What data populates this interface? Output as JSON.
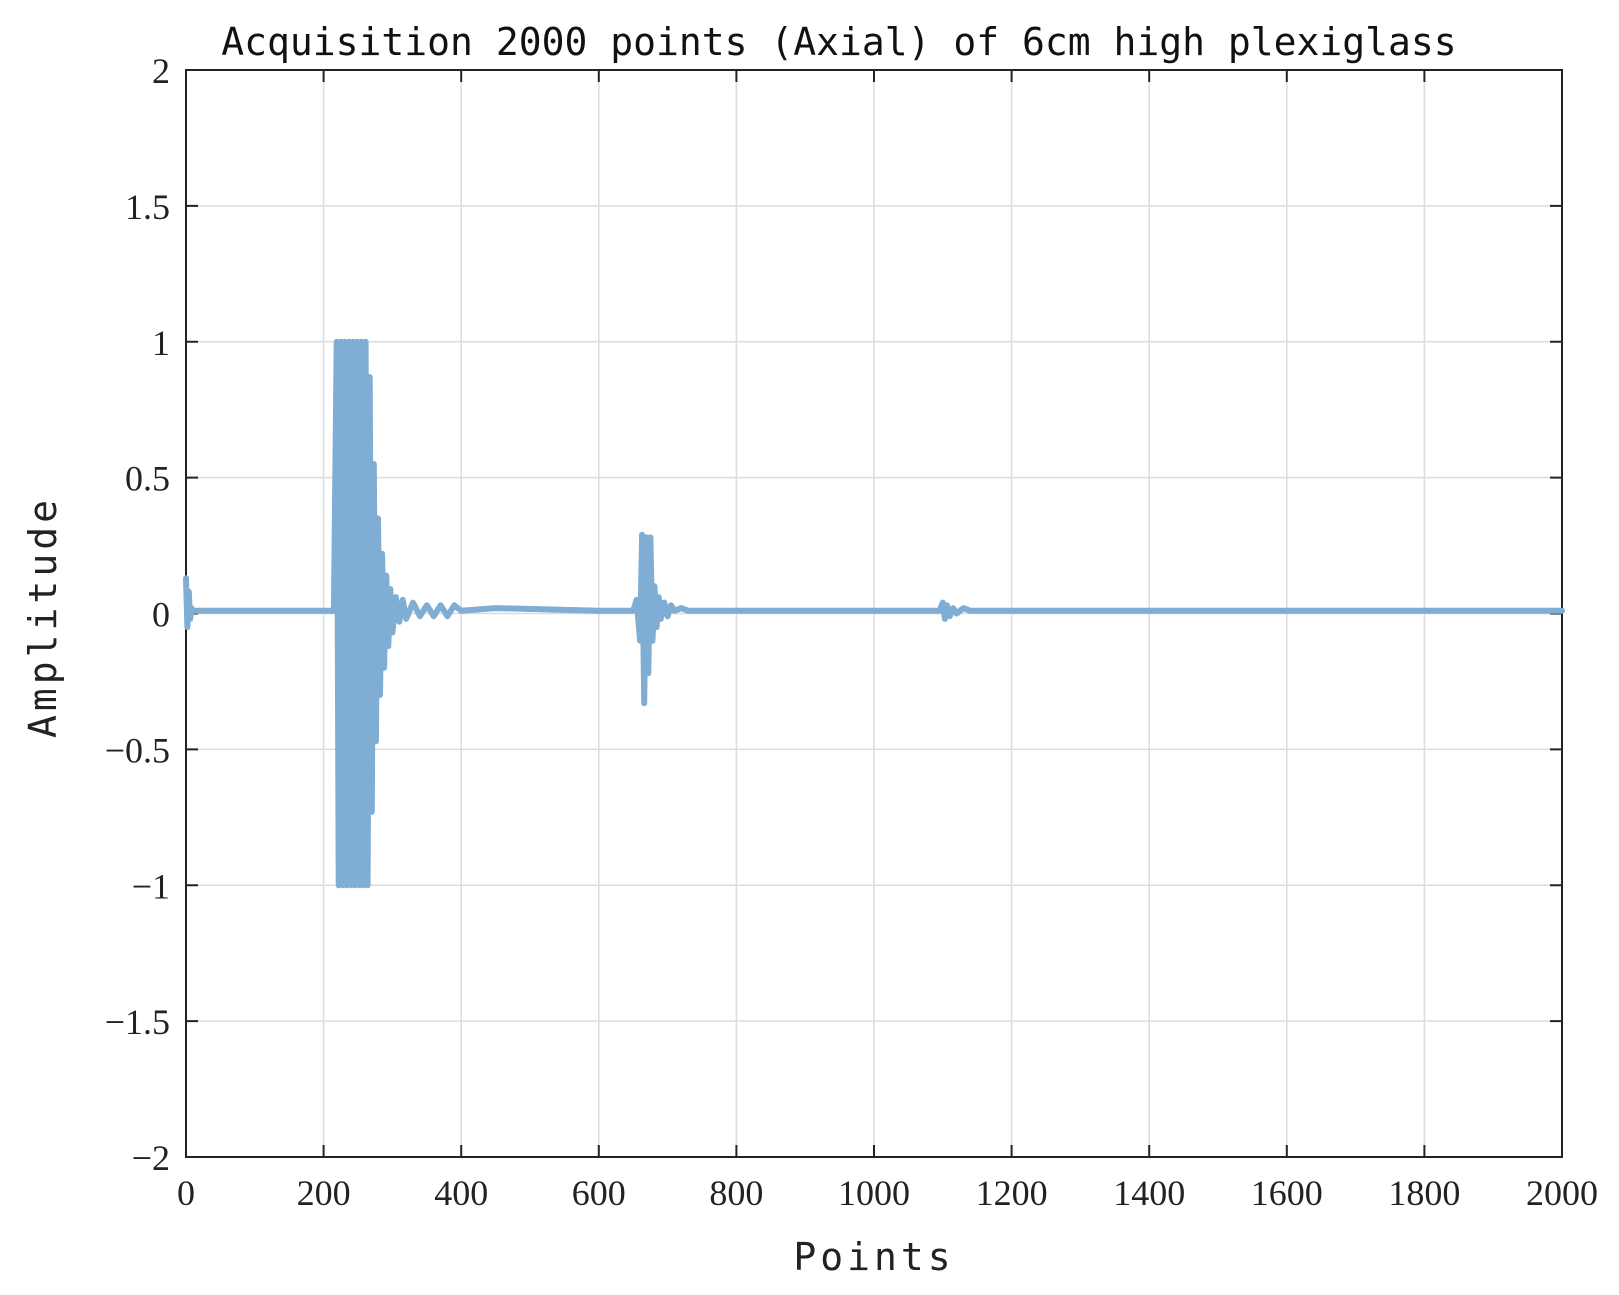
{
  "chart_data": {
    "type": "line",
    "title": "Acquisition 2000 points (Axial) of 6cm high plexiglass",
    "xlabel": "Points",
    "ylabel": "Amplitude",
    "xlim": [
      0,
      2000
    ],
    "ylim": [
      -2,
      2
    ],
    "xticks": [
      0,
      200,
      400,
      600,
      800,
      1000,
      1200,
      1400,
      1600,
      1800,
      2000
    ],
    "xtick_labels": [
      "0",
      "200",
      "400",
      "600",
      "800",
      "1000",
      "1200",
      "1400",
      "1600",
      "1800",
      "2000"
    ],
    "yticks": [
      2,
      1.5,
      1,
      0.5,
      0,
      -0.5,
      -1,
      -1.5,
      -2
    ],
    "ytick_labels": [
      "2",
      "1.5",
      "1",
      "0.5",
      "0",
      "−0.5",
      "−1",
      "−1.5",
      "−2"
    ],
    "grid": true,
    "series": [
      {
        "color": "#7fadd3",
        "x": [
          0,
          2,
          4,
          6,
          8,
          10,
          200,
          215,
          219,
          222,
          225,
          228,
          231,
          234,
          237,
          240,
          243,
          246,
          249,
          252,
          255,
          258,
          261,
          264,
          267,
          270,
          273,
          276,
          279,
          282,
          285,
          288,
          291,
          294,
          297,
          300,
          305,
          310,
          315,
          320,
          330,
          340,
          350,
          360,
          370,
          380,
          390,
          400,
          450,
          600,
          650,
          655,
          660,
          663,
          666,
          669,
          672,
          675,
          678,
          681,
          684,
          687,
          690,
          695,
          700,
          705,
          710,
          720,
          730,
          740,
          760,
          900,
          1095,
          1100,
          1103,
          1106,
          1110,
          1115,
          1120,
          1130,
          1140,
          1150,
          1300,
          1500,
          1700,
          1900,
          2000
        ],
        "y": [
          0.13,
          -0.05,
          0.08,
          -0.02,
          0.02,
          0.01,
          0.01,
          0.01,
          1.0,
          -1.0,
          1.0,
          -1.0,
          1.0,
          -1.0,
          1.0,
          -1.0,
          1.0,
          -1.0,
          1.0,
          -1.0,
          1.0,
          -1.0,
          1.0,
          -1.0,
          0.87,
          -0.73,
          0.55,
          -0.47,
          0.35,
          -0.3,
          0.22,
          -0.2,
          0.14,
          -0.12,
          0.09,
          -0.07,
          0.06,
          -0.03,
          0.05,
          -0.02,
          0.04,
          -0.01,
          0.03,
          -0.01,
          0.03,
          -0.01,
          0.03,
          0.01,
          0.02,
          0.01,
          0.01,
          0.05,
          -0.1,
          0.29,
          -0.33,
          0.28,
          -0.22,
          0.28,
          -0.1,
          0.1,
          -0.05,
          0.06,
          -0.02,
          0.04,
          -0.01,
          0.03,
          0.01,
          0.02,
          0.01,
          0.01,
          0.01,
          0.01,
          0.01,
          0.04,
          -0.02,
          0.03,
          -0.01,
          0.02,
          0.0,
          0.02,
          0.01,
          0.01,
          0.01,
          0.01,
          0.01,
          0.01,
          0.01
        ]
      }
    ]
  }
}
